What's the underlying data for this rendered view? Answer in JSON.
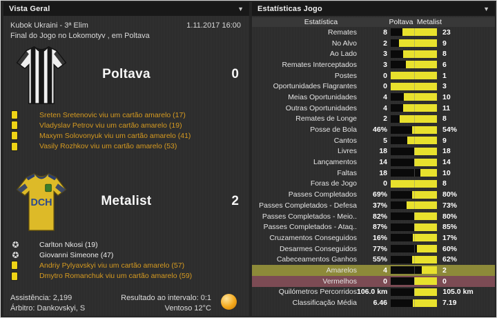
{
  "left_panel": {
    "title": "Vista Geral",
    "competition": "Kubok Ukraini - 3ª Elim",
    "datetime": "1.11.2017 16:00",
    "status_line": "Final do Jogo no Lokomotyv , em Poltava",
    "home": {
      "name": "Poltava",
      "score": "0",
      "events": [
        {
          "type": "yellow-card",
          "text": "Sreten Sretenovic viu um cartão amarelo (17)"
        },
        {
          "type": "yellow-card",
          "text": "Vladyslav Petrov viu um cartão amarelo (19)"
        },
        {
          "type": "yellow-card",
          "text": "Maxym Solovonyuk viu um cartão amarelo (41)"
        },
        {
          "type": "yellow-card",
          "text": "Vasily Rozhkov viu um cartão amarelo (53)"
        }
      ]
    },
    "away": {
      "name": "Metalist",
      "score": "2",
      "shirt_label": "DCH",
      "events": [
        {
          "type": "goal",
          "text": "Carlton Nkosi (19)"
        },
        {
          "type": "goal",
          "text": "Giovanni Simeone (47)"
        },
        {
          "type": "yellow-card",
          "text": "Andriy Pylyavskyi viu um cartão amarelo (57)"
        },
        {
          "type": "yellow-card",
          "text": "Dmytro Romanchuk viu um cartão amarelo (59)"
        }
      ]
    },
    "footer": {
      "attendance": "Assistência: 2,199",
      "referee": "Árbitro: Dankovskyi, S",
      "half_time": "Resultado ao intervalo: 0:1",
      "weather": "Ventoso 12°C"
    }
  },
  "stats_panel": {
    "title": "Estatísticas Jogo",
    "columns": {
      "stat": "Estatística",
      "home": "Poltava",
      "away": "Metalist"
    },
    "rows": [
      {
        "label": "Remates",
        "home": "8",
        "away": "23",
        "home_val": 8,
        "away_val": 23
      },
      {
        "label": "No Alvo",
        "home": "2",
        "away": "9",
        "home_val": 2,
        "away_val": 9
      },
      {
        "label": "Ao Lado",
        "home": "3",
        "away": "8",
        "home_val": 3,
        "away_val": 8
      },
      {
        "label": "Remates Interceptados",
        "home": "3",
        "away": "6",
        "home_val": 3,
        "away_val": 6
      },
      {
        "label": "Postes",
        "home": "0",
        "away": "1",
        "home_val": 0,
        "away_val": 1
      },
      {
        "label": "Oportunidades Flagrantes",
        "home": "0",
        "away": "3",
        "home_val": 0,
        "away_val": 3
      },
      {
        "label": "Meias Oportunidades",
        "home": "4",
        "away": "10",
        "home_val": 4,
        "away_val": 10
      },
      {
        "label": "Outras Oportunidades",
        "home": "4",
        "away": "11",
        "home_val": 4,
        "away_val": 11
      },
      {
        "label": "Remates de Longe",
        "home": "2",
        "away": "8",
        "home_val": 2,
        "away_val": 8
      },
      {
        "label": "Posse de Bola",
        "home": "46%",
        "away": "54%",
        "home_val": 46,
        "away_val": 54
      },
      {
        "label": "Cantos",
        "home": "5",
        "away": "9",
        "home_val": 5,
        "away_val": 9
      },
      {
        "label": "Livres",
        "home": "18",
        "away": "18",
        "home_val": 18,
        "away_val": 18
      },
      {
        "label": "Lançamentos",
        "home": "14",
        "away": "14",
        "home_val": 14,
        "away_val": 14
      },
      {
        "label": "Faltas",
        "home": "18",
        "away": "10",
        "home_val": 18,
        "away_val": 10
      },
      {
        "label": "Foras de Jogo",
        "home": "0",
        "away": "8",
        "home_val": 0,
        "away_val": 8
      },
      {
        "label": "Passes Completados",
        "home": "69%",
        "away": "80%",
        "home_val": 69,
        "away_val": 80
      },
      {
        "label": "Passes Completados - Defesa",
        "home": "37%",
        "away": "73%",
        "home_val": 37,
        "away_val": 73
      },
      {
        "label": "Passes Completados - Meio..",
        "home": "82%",
        "away": "80%",
        "home_val": 82,
        "away_val": 80
      },
      {
        "label": "Passes Completados - Ataq..",
        "home": "87%",
        "away": "85%",
        "home_val": 87,
        "away_val": 85
      },
      {
        "label": "Cruzamentos Conseguidos",
        "home": "16%",
        "away": "17%",
        "home_val": 16,
        "away_val": 17
      },
      {
        "label": "Desarmes Conseguidos",
        "home": "77%",
        "away": "60%",
        "home_val": 77,
        "away_val": 60
      },
      {
        "label": "Cabeceamentos Ganhos",
        "home": "55%",
        "away": "62%",
        "home_val": 55,
        "away_val": 62
      },
      {
        "label": "Amarelos",
        "home": "4",
        "away": "2",
        "home_val": 4,
        "away_val": 2,
        "highlight": "yellow"
      },
      {
        "label": "Vermelhos",
        "home": "0",
        "away": "0",
        "home_val": 0,
        "away_val": 0,
        "highlight": "red"
      },
      {
        "label": "Quilómetros Percorridos",
        "home": "106.0 km",
        "away": "105.0 km",
        "home_val": 106,
        "away_val": 105
      },
      {
        "label": "Classificação Média",
        "home": "6.46",
        "away": "7.19",
        "home_val": 6.46,
        "away_val": 7.19
      }
    ]
  },
  "colors": {
    "bar_yellow": "#e8e12d",
    "bar_dark": "#0a0a0a",
    "card_text": "#d79b20",
    "highlight_yellow": "#8d8a39",
    "highlight_red": "#7c4b54",
    "home_shirt_stripe": "#161616",
    "away_shirt_primary": "#ddba28",
    "away_shirt_trim": "#2c3e6b"
  }
}
